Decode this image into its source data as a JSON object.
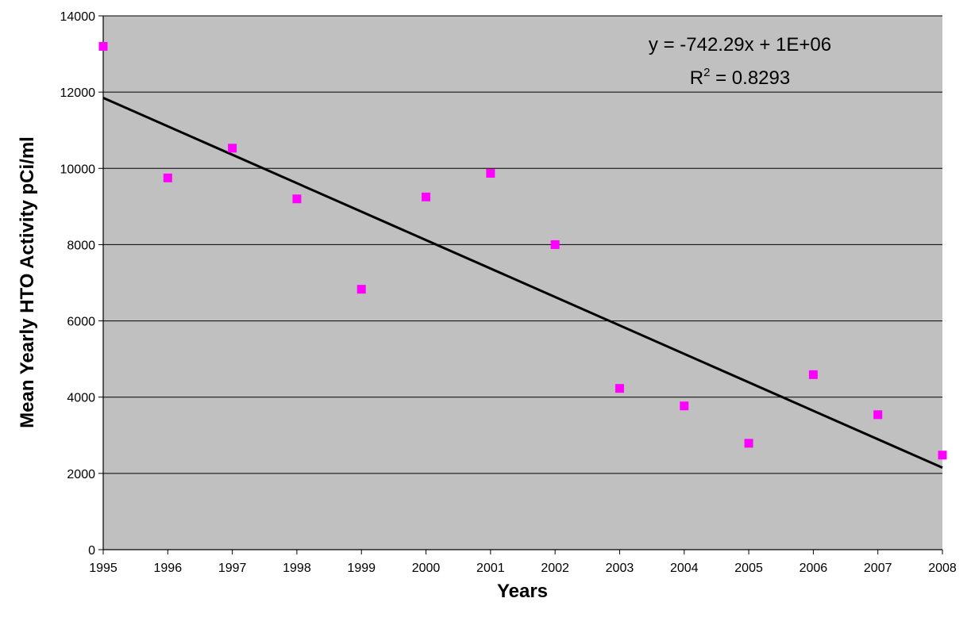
{
  "chart_data": {
    "type": "scatter",
    "title": "",
    "xlabel": "Years",
    "ylabel": "Mean Yearly HTO Activity pCi/ml",
    "xlim": [
      1995,
      2008
    ],
    "ylim": [
      0,
      14000
    ],
    "x_ticks": [
      1995,
      1996,
      1997,
      1998,
      1999,
      2000,
      2001,
      2002,
      2003,
      2004,
      2005,
      2006,
      2007,
      2008
    ],
    "y_ticks": [
      0,
      2000,
      4000,
      6000,
      8000,
      10000,
      12000,
      14000
    ],
    "grid": "horizontal",
    "legend": "none",
    "series": [
      {
        "marker": "square",
        "color": "#ff00ff",
        "x": [
          1995,
          1996,
          1997,
          1998,
          1999,
          2000,
          2001,
          2002,
          2003,
          2004,
          2005,
          2006,
          2007,
          2008
        ],
        "y": [
          13200,
          9750,
          10530,
          9200,
          6830,
          9250,
          9870,
          8000,
          4230,
          3770,
          2790,
          4590,
          3540,
          2480
        ]
      }
    ],
    "trendline": {
      "type": "linear",
      "color": "#000000",
      "x": [
        1995,
        2008
      ],
      "y": [
        11850,
        2150
      ],
      "equation": "y = -742.29x + 1E+06",
      "r_squared_label": "R",
      "r_squared_exponent": "2",
      "r_squared_value": " = 0.8293"
    },
    "plot_background": "#c0c0c0"
  }
}
